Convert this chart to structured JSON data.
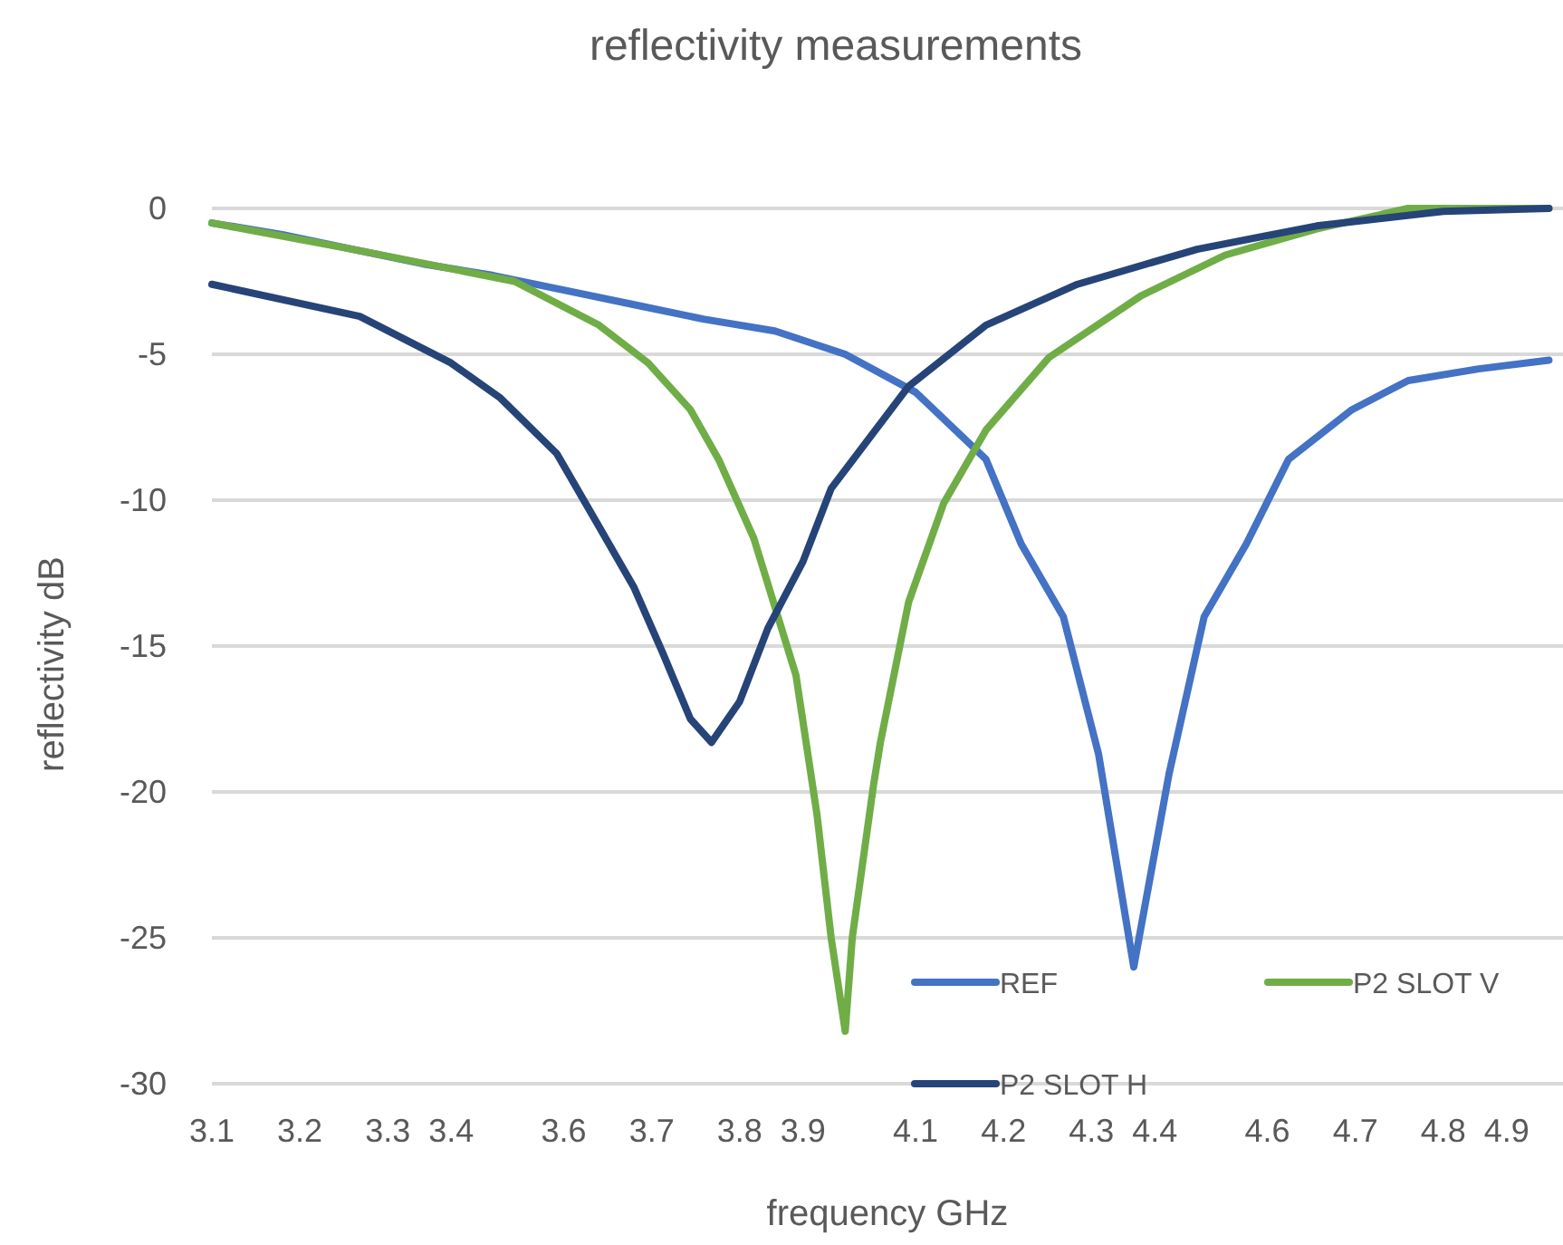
{
  "chart_data": {
    "type": "line",
    "title": "reflectivity measurements",
    "xlabel": "frequency GHz",
    "ylabel": "reflectivity dB",
    "xlim": [
      3.1,
      5.02
    ],
    "ylim": [
      -30,
      0
    ],
    "xticks": [
      {
        "value": 3.1,
        "label": "3.1"
      },
      {
        "value": 3.225,
        "label": "3.2"
      },
      {
        "value": 3.35,
        "label": "3.3"
      },
      {
        "value": 3.44,
        "label": "3.4"
      },
      {
        "value": 3.6,
        "label": "3.6"
      },
      {
        "value": 3.725,
        "label": "3.7"
      },
      {
        "value": 3.85,
        "label": "3.8"
      },
      {
        "value": 3.94,
        "label": "3.9"
      },
      {
        "value": 4.1,
        "label": "4.1"
      },
      {
        "value": 4.225,
        "label": "4.2"
      },
      {
        "value": 4.35,
        "label": "4.3"
      },
      {
        "value": 4.44,
        "label": "4.4"
      },
      {
        "value": 4.6,
        "label": "4.6"
      },
      {
        "value": 4.725,
        "label": "4.7"
      },
      {
        "value": 4.85,
        "label": "4.8"
      },
      {
        "value": 4.94,
        "label": "4.9"
      }
    ],
    "yticks": [
      0,
      -5,
      -10,
      -15,
      -20,
      -25,
      -30
    ],
    "grid": "y",
    "legend": "bottom right",
    "marker": "none",
    "line_style": "solid",
    "series": [
      {
        "name": "REF",
        "color": "#4472c4",
        "x": [
          3.1,
          3.2,
          3.3,
          3.4,
          3.5,
          3.6,
          3.7,
          3.8,
          3.9,
          4.0,
          4.1,
          4.2,
          4.25,
          4.31,
          4.36,
          4.41,
          4.46,
          4.51,
          4.57,
          4.63,
          4.72,
          4.8,
          4.9,
          5.0
        ],
        "values": [
          -0.5,
          -0.9,
          -1.4,
          -1.9,
          -2.3,
          -2.8,
          -3.3,
          -3.8,
          -4.2,
          -5.0,
          -6.3,
          -8.6,
          -11.5,
          -14,
          -18.7,
          -26,
          -19.4,
          -14,
          -11.5,
          -8.6,
          -6.9,
          -5.9,
          -5.5,
          -5.2
        ]
      },
      {
        "name": "P2 SLOT V",
        "color": "#70ad47",
        "x": [
          3.1,
          3.3,
          3.53,
          3.65,
          3.72,
          3.78,
          3.82,
          3.87,
          3.93,
          3.96,
          3.98,
          4.0,
          4.01,
          4.04,
          4.05,
          4.09,
          4.14,
          4.2,
          4.29,
          4.42,
          4.54,
          4.67,
          4.8,
          5.0
        ],
        "values": [
          -0.5,
          -1.4,
          -2.5,
          -4.0,
          -5.3,
          -6.9,
          -8.6,
          -11.3,
          -16.0,
          -20.8,
          -25,
          -28.2,
          -25,
          -19.8,
          -18.3,
          -13.5,
          -10.1,
          -7.6,
          -5.1,
          -3.0,
          -1.6,
          -0.7,
          0,
          0
        ]
      },
      {
        "name": "P2 SLOT H",
        "color": "#264478",
        "x": [
          3.1,
          3.31,
          3.44,
          3.51,
          3.59,
          3.65,
          3.7,
          3.74,
          3.78,
          3.81,
          3.85,
          3.89,
          3.94,
          3.98,
          4.09,
          4.2,
          4.33,
          4.5,
          4.67,
          4.85,
          5.0
        ],
        "values": [
          -2.6,
          -3.7,
          -5.3,
          -6.5,
          -8.4,
          -10.9,
          -13.0,
          -15.2,
          -17.5,
          -18.3,
          -16.9,
          -14.4,
          -12.1,
          -9.6,
          -6.1,
          -4.0,
          -2.6,
          -1.4,
          -0.6,
          -0.1,
          0
        ]
      }
    ]
  }
}
